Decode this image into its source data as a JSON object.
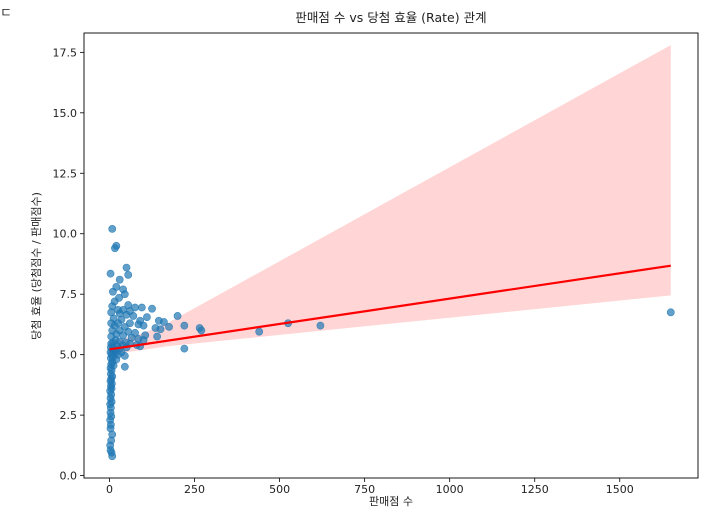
{
  "corner_glyph": "ㄷ",
  "chart_data": {
    "type": "scatter",
    "title": "판매점 수 vs 당첨 효율 (Rate) 관계",
    "xlabel": "판매점 수",
    "ylabel": "당첨 효율 (당첨점수 / 판매점수)",
    "xlim": [
      -75,
      1730
    ],
    "ylim": [
      -0.1,
      18.3
    ],
    "xticks": [
      0,
      250,
      500,
      750,
      1000,
      1250,
      1500
    ],
    "xtick_labels": [
      "0",
      "250",
      "500",
      "750",
      "1000",
      "1250",
      "1500"
    ],
    "yticks": [
      0,
      2.5,
      5,
      7.5,
      10,
      12.5,
      15,
      17.5
    ],
    "ytick_labels": [
      "0.0",
      "2.5",
      "5.0",
      "7.5",
      "10.0",
      "12.5",
      "15.0",
      "17.5"
    ],
    "grid": false,
    "legend": "none",
    "colors": {
      "points": "#1f77b4",
      "regression": "#ff0000",
      "ci_band": "#ffb3b3",
      "axes": "#000000"
    },
    "regression": {
      "x": [
        0,
        1650
      ],
      "y": [
        5.22,
        8.68
      ]
    },
    "confidence_band": {
      "x": [
        0,
        100,
        170,
        1650
      ],
      "upper": [
        5.5,
        5.9,
        6.3,
        17.8
      ],
      "lower": [
        5.0,
        5.2,
        5.35,
        7.45
      ]
    },
    "points": [
      {
        "x": 8,
        "y": 10.2
      },
      {
        "x": 20,
        "y": 9.5
      },
      {
        "x": 16,
        "y": 9.4
      },
      {
        "x": 50,
        "y": 8.6
      },
      {
        "x": 3,
        "y": 8.35
      },
      {
        "x": 55,
        "y": 8.3
      },
      {
        "x": 30,
        "y": 8.1
      },
      {
        "x": 20,
        "y": 7.8
      },
      {
        "x": 40,
        "y": 7.7
      },
      {
        "x": 10,
        "y": 7.6
      },
      {
        "x": 45,
        "y": 7.5
      },
      {
        "x": 28,
        "y": 7.35
      },
      {
        "x": 15,
        "y": 7.2
      },
      {
        "x": 55,
        "y": 7.05
      },
      {
        "x": 8,
        "y": 7.0
      },
      {
        "x": 75,
        "y": 6.95
      },
      {
        "x": 95,
        "y": 6.95
      },
      {
        "x": 125,
        "y": 6.9
      },
      {
        "x": 25,
        "y": 6.85
      },
      {
        "x": 40,
        "y": 6.85
      },
      {
        "x": 60,
        "y": 6.8
      },
      {
        "x": 5,
        "y": 6.75
      },
      {
        "x": 30,
        "y": 6.7
      },
      {
        "x": 50,
        "y": 6.65
      },
      {
        "x": 70,
        "y": 6.6
      },
      {
        "x": 110,
        "y": 6.55
      },
      {
        "x": 200,
        "y": 6.6
      },
      {
        "x": 1650,
        "y": 6.75
      },
      {
        "x": 12,
        "y": 6.5
      },
      {
        "x": 35,
        "y": 6.45
      },
      {
        "x": 90,
        "y": 6.4
      },
      {
        "x": 145,
        "y": 6.4
      },
      {
        "x": 160,
        "y": 6.35
      },
      {
        "x": 5,
        "y": 6.3
      },
      {
        "x": 25,
        "y": 6.3
      },
      {
        "x": 60,
        "y": 6.3
      },
      {
        "x": 85,
        "y": 6.25
      },
      {
        "x": 100,
        "y": 6.2
      },
      {
        "x": 525,
        "y": 6.3
      },
      {
        "x": 620,
        "y": 6.2
      },
      {
        "x": 220,
        "y": 6.2
      },
      {
        "x": 265,
        "y": 6.1
      },
      {
        "x": 15,
        "y": 6.2
      },
      {
        "x": 45,
        "y": 6.15
      },
      {
        "x": 135,
        "y": 6.1
      },
      {
        "x": 175,
        "y": 6.15
      },
      {
        "x": 150,
        "y": 6.05
      },
      {
        "x": 270,
        "y": 6.0
      },
      {
        "x": 440,
        "y": 5.95
      },
      {
        "x": 8,
        "y": 6.0
      },
      {
        "x": 30,
        "y": 6.0
      },
      {
        "x": 55,
        "y": 5.95
      },
      {
        "x": 75,
        "y": 5.9
      },
      {
        "x": 105,
        "y": 5.8
      },
      {
        "x": 140,
        "y": 5.75
      },
      {
        "x": 20,
        "y": 5.85
      },
      {
        "x": 40,
        "y": 5.8
      },
      {
        "x": 5,
        "y": 5.75
      },
      {
        "x": 65,
        "y": 5.7
      },
      {
        "x": 85,
        "y": 5.65
      },
      {
        "x": 100,
        "y": 5.6
      },
      {
        "x": 18,
        "y": 5.6
      },
      {
        "x": 30,
        "y": 5.55
      },
      {
        "x": 48,
        "y": 5.5
      },
      {
        "x": 10,
        "y": 5.5
      },
      {
        "x": 5,
        "y": 5.45
      },
      {
        "x": 38,
        "y": 5.4
      },
      {
        "x": 60,
        "y": 5.45
      },
      {
        "x": 80,
        "y": 5.4
      },
      {
        "x": 90,
        "y": 5.35
      },
      {
        "x": 22,
        "y": 5.35
      },
      {
        "x": 12,
        "y": 5.3
      },
      {
        "x": 4,
        "y": 5.3
      },
      {
        "x": 30,
        "y": 5.25
      },
      {
        "x": 50,
        "y": 5.3
      },
      {
        "x": 220,
        "y": 5.25
      },
      {
        "x": 8,
        "y": 5.2
      },
      {
        "x": 18,
        "y": 5.15
      },
      {
        "x": 35,
        "y": 5.1
      },
      {
        "x": 3,
        "y": 5.1
      },
      {
        "x": 15,
        "y": 5.05
      },
      {
        "x": 25,
        "y": 5.0
      },
      {
        "x": 6,
        "y": 5.0
      },
      {
        "x": 45,
        "y": 4.95
      },
      {
        "x": 10,
        "y": 4.9
      },
      {
        "x": 4,
        "y": 4.85
      },
      {
        "x": 20,
        "y": 4.8
      },
      {
        "x": 8,
        "y": 4.7
      },
      {
        "x": 5,
        "y": 4.6
      },
      {
        "x": 12,
        "y": 4.55
      },
      {
        "x": 45,
        "y": 4.5
      },
      {
        "x": 3,
        "y": 4.45
      },
      {
        "x": 6,
        "y": 4.35
      },
      {
        "x": 4,
        "y": 4.2
      },
      {
        "x": 8,
        "y": 4.1
      },
      {
        "x": 5,
        "y": 4.0
      },
      {
        "x": 3,
        "y": 3.9
      },
      {
        "x": 7,
        "y": 3.8
      },
      {
        "x": 4,
        "y": 3.7
      },
      {
        "x": 6,
        "y": 3.6
      },
      {
        "x": 2,
        "y": 3.5
      },
      {
        "x": 5,
        "y": 3.35
      },
      {
        "x": 3,
        "y": 3.2
      },
      {
        "x": 6,
        "y": 3.05
      },
      {
        "x": 2,
        "y": 2.95
      },
      {
        "x": 4,
        "y": 2.8
      },
      {
        "x": 3,
        "y": 2.6
      },
      {
        "x": 5,
        "y": 2.45
      },
      {
        "x": 2,
        "y": 2.3
      },
      {
        "x": 4,
        "y": 2.1
      },
      {
        "x": 3,
        "y": 1.95
      },
      {
        "x": 8,
        "y": 1.7
      },
      {
        "x": 5,
        "y": 1.45
      },
      {
        "x": 2,
        "y": 1.25
      },
      {
        "x": 3,
        "y": 1.05
      },
      {
        "x": 6,
        "y": 0.95
      },
      {
        "x": 8,
        "y": 0.8
      }
    ]
  }
}
